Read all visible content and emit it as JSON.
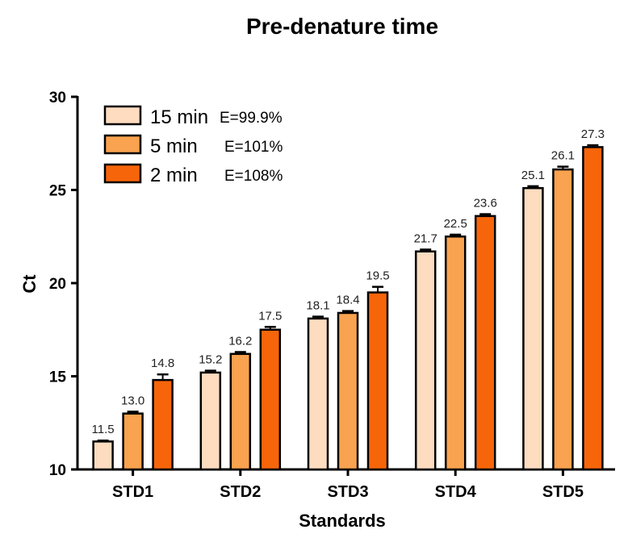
{
  "chart_data": {
    "type": "bar",
    "title": "Pre-denature time",
    "xlabel": "Standards",
    "ylabel": "Ct",
    "ylim": [
      10,
      30
    ],
    "yticks": [
      10,
      15,
      20,
      25,
      30
    ],
    "categories": [
      "STD1",
      "STD2",
      "STD3",
      "STD4",
      "STD5"
    ],
    "series": [
      {
        "name": "15 min",
        "note": "E=99.9%",
        "color": "#FDDCC0",
        "values": [
          11.5,
          15.2,
          18.1,
          21.7,
          25.1
        ]
      },
      {
        "name": "5 min",
        "note": "E=101%",
        "color": "#F9A24F",
        "values": [
          13.0,
          16.2,
          18.4,
          22.5,
          26.1
        ]
      },
      {
        "name": "2 min",
        "note": "E=108%",
        "color": "#F7650A",
        "values": [
          14.8,
          17.5,
          19.5,
          23.6,
          27.3
        ]
      }
    ],
    "error_bars": [
      [
        0.05,
        0.1,
        0.1,
        0.1,
        0.1
      ],
      [
        0.1,
        0.1,
        0.1,
        0.1,
        0.15
      ],
      [
        0.3,
        0.15,
        0.3,
        0.1,
        0.1
      ]
    ],
    "legend_position": "top-left",
    "grid": false
  }
}
